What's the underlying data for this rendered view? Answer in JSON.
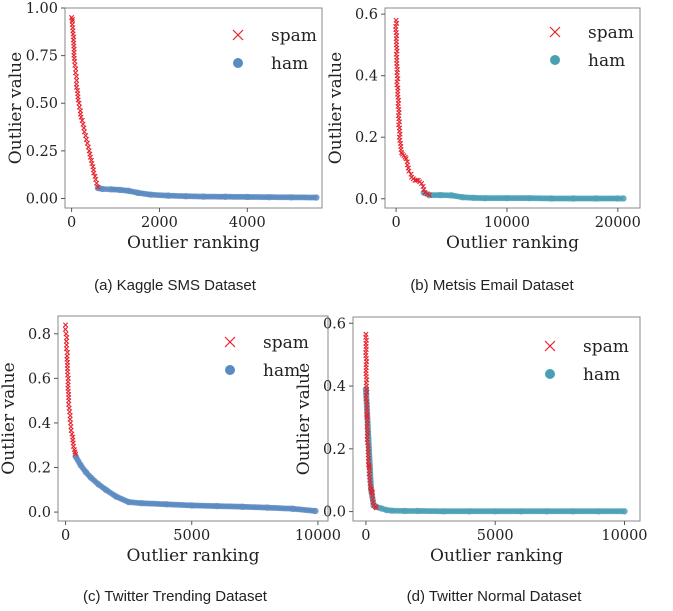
{
  "colors": {
    "spam": "#e8222d",
    "ham_a": "#5a8ac2",
    "ham_b": "#4a9fb5",
    "frame": "#888888"
  },
  "chart_data": [
    {
      "type": "scatter",
      "caption": "(a)  Kaggle SMS Dataset",
      "xlabel": "Outlier ranking",
      "ylabel": "Outlier value",
      "xlim": [
        -150,
        5700
      ],
      "ylim": [
        -0.05,
        1.0
      ],
      "xticks": [
        0,
        2000,
        4000
      ],
      "yticks": [
        0.0,
        0.25,
        0.5,
        0.75,
        1.0
      ],
      "ytick_labels": [
        "0.00",
        "0.25",
        "0.50",
        "0.75",
        "1.00"
      ],
      "legend": "top-right",
      "series": [
        {
          "name": "spam",
          "marker": "x",
          "x": [
            0,
            15,
            30,
            50,
            70,
            90,
            110,
            140,
            170,
            200,
            240,
            280,
            320,
            360,
            400,
            450,
            500,
            550,
            600
          ],
          "y": [
            0.95,
            0.93,
            0.88,
            0.8,
            0.72,
            0.66,
            0.6,
            0.55,
            0.5,
            0.46,
            0.41,
            0.37,
            0.33,
            0.29,
            0.25,
            0.2,
            0.15,
            0.1,
            0.06
          ]
        },
        {
          "name": "ham",
          "marker": "o",
          "x": [
            600,
            700,
            900,
            1100,
            1300,
            1500,
            1800,
            2200,
            2600,
            3000,
            3500,
            4000,
            4500,
            5000,
            5570
          ],
          "y": [
            0.055,
            0.05,
            0.048,
            0.045,
            0.04,
            0.03,
            0.02,
            0.015,
            0.012,
            0.01,
            0.009,
            0.008,
            0.007,
            0.006,
            0.005
          ]
        }
      ]
    },
    {
      "type": "scatter",
      "caption": "(b)  Metsis Email Dataset",
      "xlabel": "Outlier ranking",
      "ylabel": "Outlier value",
      "xlim": [
        -1000,
        22000
      ],
      "ylim": [
        -0.03,
        0.62
      ],
      "xticks": [
        0,
        10000,
        20000
      ],
      "yticks": [
        0.0,
        0.2,
        0.4,
        0.6
      ],
      "ytick_labels": [
        "0.0",
        "0.2",
        "0.4",
        "0.6"
      ],
      "legend": "top-right",
      "series": [
        {
          "name": "spam",
          "marker": "x",
          "x": [
            0,
            30,
            60,
            100,
            150,
            200,
            250,
            300,
            400,
            500,
            700,
            900,
            1100,
            1400,
            1700,
            2000,
            2300,
            2600,
            3000
          ],
          "y": [
            0.58,
            0.5,
            0.45,
            0.4,
            0.35,
            0.31,
            0.26,
            0.22,
            0.18,
            0.15,
            0.14,
            0.13,
            0.1,
            0.07,
            0.06,
            0.06,
            0.05,
            0.02,
            0.012
          ]
        },
        {
          "name": "ham",
          "marker": "o",
          "x": [
            2500,
            3000,
            4000,
            5000,
            6000,
            7000,
            8000,
            10000,
            12000,
            14000,
            16000,
            18000,
            20000,
            20500
          ],
          "y": [
            0.02,
            0.012,
            0.012,
            0.011,
            0.005,
            0.003,
            0.002,
            0.002,
            0.002,
            0.001,
            0.001,
            0.001,
            0.001,
            0.001
          ]
        }
      ]
    },
    {
      "type": "scatter",
      "caption": "(c)  Twitter Trending Dataset",
      "xlabel": "Outlier ranking",
      "ylabel": "Outlier value",
      "xlim": [
        -300,
        10400
      ],
      "ylim": [
        -0.04,
        0.88
      ],
      "xticks": [
        0,
        5000,
        10000
      ],
      "yticks": [
        0.0,
        0.2,
        0.4,
        0.6,
        0.8
      ],
      "ytick_labels": [
        "0.0",
        "0.2",
        "0.4",
        "0.6",
        "0.8"
      ],
      "legend": "top-right",
      "series": [
        {
          "name": "spam",
          "marker": "x",
          "x": [
            0,
            20,
            40,
            60,
            80,
            100,
            130,
            160,
            200,
            250,
            300,
            350,
            400
          ],
          "y": [
            0.84,
            0.8,
            0.75,
            0.7,
            0.63,
            0.57,
            0.5,
            0.45,
            0.4,
            0.35,
            0.31,
            0.28,
            0.26
          ]
        },
        {
          "name": "ham",
          "marker": "o",
          "x": [
            400,
            600,
            800,
            1000,
            1300,
            1600,
            2000,
            2500,
            3000,
            4000,
            5000,
            6000,
            7000,
            8000,
            9000,
            9900
          ],
          "y": [
            0.25,
            0.21,
            0.18,
            0.155,
            0.125,
            0.1,
            0.07,
            0.045,
            0.04,
            0.035,
            0.03,
            0.027,
            0.024,
            0.02,
            0.015,
            0.005
          ]
        }
      ]
    },
    {
      "type": "scatter",
      "caption": "(d)  Twitter Normal Dataset",
      "xlabel": "Outlier ranking",
      "ylabel": "Outlier value",
      "xlim": [
        -500,
        10600
      ],
      "ylim": [
        -0.03,
        0.62
      ],
      "xticks": [
        0,
        5000,
        10000
      ],
      "yticks": [
        0.0,
        0.2,
        0.4,
        0.6
      ],
      "ytick_labels": [
        "0.0",
        "0.2",
        "0.4",
        "0.6"
      ],
      "legend": "top-right",
      "series": [
        {
          "name": "spam",
          "marker": "x",
          "x": [
            0,
            10,
            20,
            30,
            40,
            50,
            60,
            80,
            100,
            120,
            150,
            180,
            200,
            250,
            300,
            400
          ],
          "y": [
            0.565,
            0.41,
            0.39,
            0.31,
            0.3,
            0.24,
            0.22,
            0.2,
            0.15,
            0.14,
            0.1,
            0.08,
            0.065,
            0.06,
            0.02,
            0.012
          ]
        },
        {
          "name": "ham",
          "marker": "o",
          "x": [
            0,
            200,
            300,
            400,
            600,
            800,
            1000,
            1500,
            2000,
            3000,
            4000,
            5000,
            6000,
            7000,
            8000,
            9000,
            10000
          ],
          "y": [
            0.39,
            0.07,
            0.02,
            0.015,
            0.01,
            0.005,
            0.003,
            0.002,
            0.002,
            0.001,
            0.001,
            0.001,
            0.001,
            0.001,
            0.001,
            0.001,
            0.001
          ]
        }
      ]
    }
  ]
}
